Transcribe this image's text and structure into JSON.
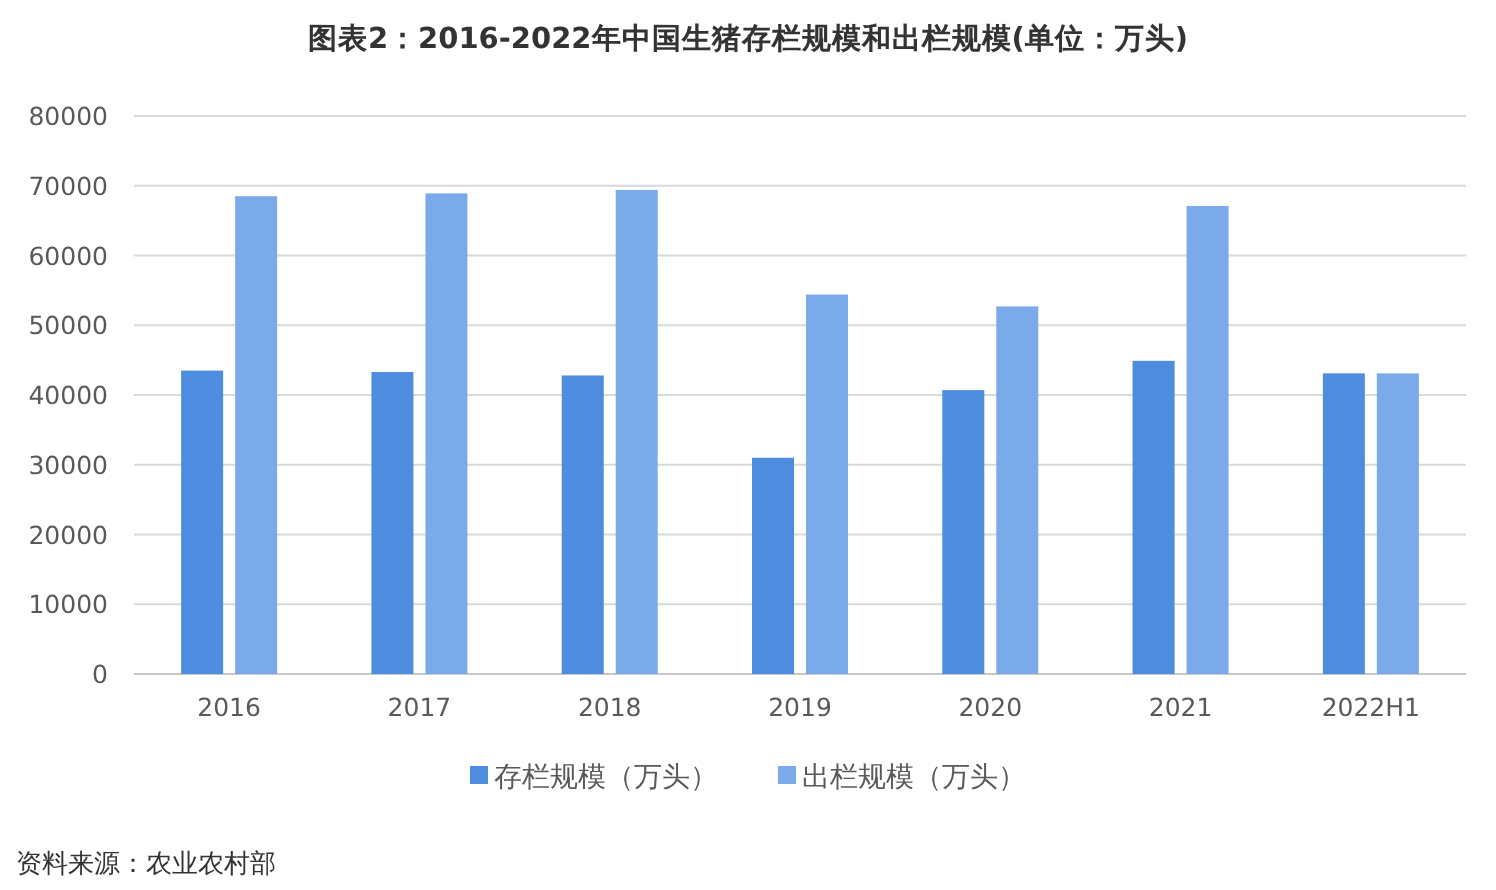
{
  "chart_data": {
    "type": "bar",
    "title": "图表2：2016-2022年中国生猪存栏规模和出栏规模(单位：万头)",
    "categories": [
      "2016",
      "2017",
      "2018",
      "2019",
      "2020",
      "2021",
      "2022H1"
    ],
    "series": [
      {
        "name": "存栏规模（万头）",
        "color": "#4e8cdf",
        "values": [
          43500,
          43300,
          42800,
          31000,
          40700,
          44900,
          43100
        ]
      },
      {
        "name": "出栏规模（万头）",
        "color": "#7aaaea",
        "values": [
          68500,
          68900,
          69400,
          54400,
          52700,
          67100,
          43100
        ]
      }
    ],
    "ylim": [
      0,
      80000
    ],
    "yticks": [
      0,
      10000,
      20000,
      30000,
      40000,
      50000,
      60000,
      70000,
      80000
    ],
    "grid": "y",
    "legend": "bottom",
    "annotations": [
      "资料来源：农业农村部"
    ]
  }
}
